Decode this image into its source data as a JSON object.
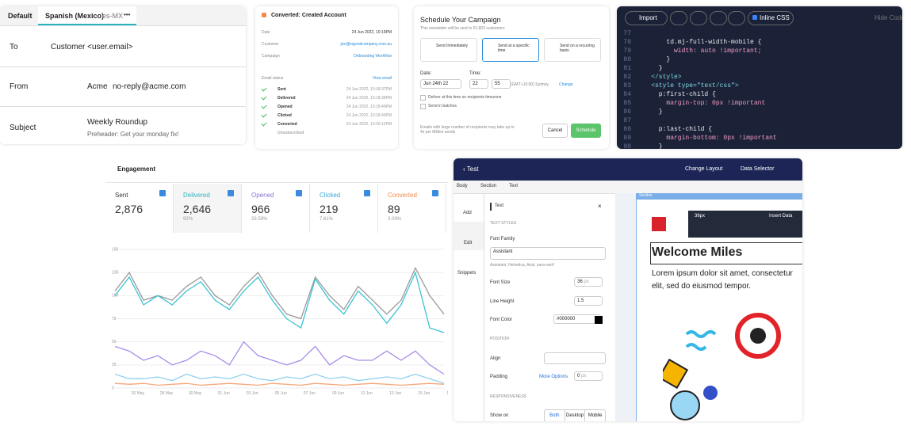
{
  "email_header": {
    "tabs": [
      "Default",
      "Spanish (Mexico)"
    ],
    "locale": "es-MX",
    "more": "•••",
    "rows": [
      {
        "label": "To",
        "value": "Customer <user.email>"
      },
      {
        "label": "From",
        "name": "Acme",
        "value": "no-reply@acme.com"
      },
      {
        "label": "Subject",
        "value": "Weekly Roundup",
        "preheader": "Preheader: Get your monday fix!"
      }
    ]
  },
  "conversion": {
    "title": "Converted: Created Account",
    "fields": [
      {
        "label": "Date",
        "value": "24 Jun 2022, 10:19PM"
      },
      {
        "label": "Customer",
        "value": "joe@ingoodcompany.com.au"
      },
      {
        "label": "Campaign",
        "value": "Onboarding Workflow"
      }
    ],
    "status_label": "Email status",
    "view": "View email",
    "events": [
      {
        "name": "Sent",
        "time": "24 Jun 2022, 10:18:37PM"
      },
      {
        "name": "Delivered",
        "time": "24 Jun 2022, 10:18:39PM"
      },
      {
        "name": "Opened",
        "time": "24 Jun 2022, 10:18:40PM"
      },
      {
        "name": "Clicked",
        "time": "24 Jun 2022, 10:18:43PM"
      },
      {
        "name": "Converted",
        "time": "24 Jun 2022, 10:20:12PM"
      },
      {
        "name": "Unsubscribed"
      }
    ]
  },
  "schedule": {
    "title": "Schedule Your Campaign",
    "subtitle": "This newsletter will be sent to 51,803 customers",
    "options": [
      "Send Immediately",
      "Send at a specific time",
      "Send on a recurring basis"
    ],
    "date_label": "Date:",
    "time_label": "Time:",
    "date": "Jun 24th 22",
    "hour": "22",
    "minute": "55",
    "timezone": "(GMT+10:00) Sydney",
    "change": "Change",
    "checks": [
      "Deliver at this time on recipients timezone",
      "Send in batches"
    ],
    "note": "Emails with large number of recipients may take up to 4s per Million sends",
    "cancel": "Cancel",
    "submit": "Schedule"
  },
  "code": {
    "toolbar": [
      "Import",
      "Inline CSS"
    ],
    "hide": "Hide Code",
    "lines": [
      {
        "n": "77",
        "t": ""
      },
      {
        "n": "78",
        "t": "        td.mj-full-width-mobile {"
      },
      {
        "n": "79",
        "t": "          width: auto !important;"
      },
      {
        "n": "80",
        "t": "        }"
      },
      {
        "n": "81",
        "t": "      }"
      },
      {
        "n": "82",
        "t": "    </style>"
      },
      {
        "n": "83",
        "t": "    <style type=\"text/css\">"
      },
      {
        "n": "84",
        "t": "      p:first-child {"
      },
      {
        "n": "85",
        "t": "        margin-top: 0px !important"
      },
      {
        "n": "86",
        "t": "      }"
      },
      {
        "n": "87",
        "t": ""
      },
      {
        "n": "88",
        "t": "      p:last-child {"
      },
      {
        "n": "89",
        "t": "        margin-bottom: 0px !important"
      },
      {
        "n": "90",
        "t": "      }"
      }
    ]
  },
  "engagement": {
    "title": "Engagement",
    "stats": [
      {
        "name": "Sent",
        "value": "2,876"
      },
      {
        "name": "Delivered",
        "value": "2,646",
        "pct": "92%"
      },
      {
        "name": "Opened",
        "value": "966",
        "pct": "33.59%"
      },
      {
        "name": "Clicked",
        "value": "219",
        "pct": "7.61%"
      },
      {
        "name": "Converted",
        "value": "89",
        "pct": "3.09%"
      }
    ],
    "chart": {
      "type": "line",
      "x_labels": [
        "26 May",
        "28 May",
        "30 May",
        "01 Jun",
        "03 Jun",
        "05 Jun",
        "07 Jun",
        "09 Jun",
        "11 Jun",
        "13 Jun",
        "15 Jun",
        "17 Jun"
      ],
      "ylim": [
        0,
        150
      ],
      "yticks": [
        0,
        25,
        50,
        75,
        100,
        125,
        150
      ],
      "series": [
        {
          "color": "#9a9a9a",
          "values": [
            105,
            125,
            95,
            100,
            95,
            110,
            120,
            100,
            90,
            110,
            125,
            100,
            80,
            75,
            120,
            100,
            85,
            110,
            95,
            80,
            95,
            130,
            100,
            80
          ]
        },
        {
          "color": "#3cc3d3",
          "values": [
            100,
            120,
            90,
            100,
            90,
            105,
            115,
            95,
            85,
            105,
            120,
            95,
            75,
            65,
            118,
            95,
            80,
            105,
            90,
            70,
            90,
            125,
            65,
            60
          ]
        },
        {
          "color": "#a98ce8",
          "values": [
            45,
            40,
            30,
            35,
            25,
            30,
            40,
            35,
            25,
            50,
            35,
            30,
            25,
            30,
            45,
            25,
            35,
            30,
            30,
            40,
            30,
            40,
            25,
            15
          ]
        },
        {
          "color": "#8fd0f0",
          "values": [
            15,
            10,
            10,
            12,
            8,
            15,
            10,
            12,
            10,
            15,
            10,
            8,
            12,
            10,
            15,
            10,
            12,
            8,
            10,
            12,
            10,
            15,
            10,
            5
          ]
        },
        {
          "color": "#f5a77a",
          "values": [
            5,
            4,
            5,
            3,
            4,
            5,
            3,
            4,
            5,
            4,
            3,
            5,
            4,
            3,
            5,
            4,
            3,
            4,
            5,
            4,
            3,
            4,
            5,
            4
          ]
        }
      ]
    }
  },
  "editor": {
    "back": "Test",
    "actions": [
      "Change Layout",
      "Data Selector"
    ],
    "breadcrumb": [
      "Body",
      "Section",
      "Text"
    ],
    "sidebar": [
      "Add",
      "Edit",
      "Snippets"
    ],
    "panel": {
      "title": "Text",
      "section1": "TEXT STYLES",
      "font_family_label": "Font Family",
      "font_family": "Assistant",
      "font_hint": "Assistant, Helvetica, Arial, sans-serif",
      "font_size_label": "Font Size",
      "font_size": "36",
      "unit": "px",
      "line_height_label": "Line Height",
      "line_height": "1.5",
      "font_color_label": "Font Color",
      "font_color": "#000000",
      "section2": "POSITION",
      "align_label": "Align",
      "padding_label": "Padding",
      "more_options": "More Options",
      "padding": "0",
      "section3": "RESPONSIVENESS",
      "show_on_label": "Show on",
      "show_on": [
        "Both",
        "Desktop",
        "Mobile"
      ]
    },
    "canvas": {
      "section": "Section",
      "toolbar_size": "36px",
      "insert": "Insert Data",
      "heading": "Welcome Miles",
      "body": "Lorem ipsum dolor sit amet, consectetur elit, sed do eiusmod tempor."
    }
  }
}
